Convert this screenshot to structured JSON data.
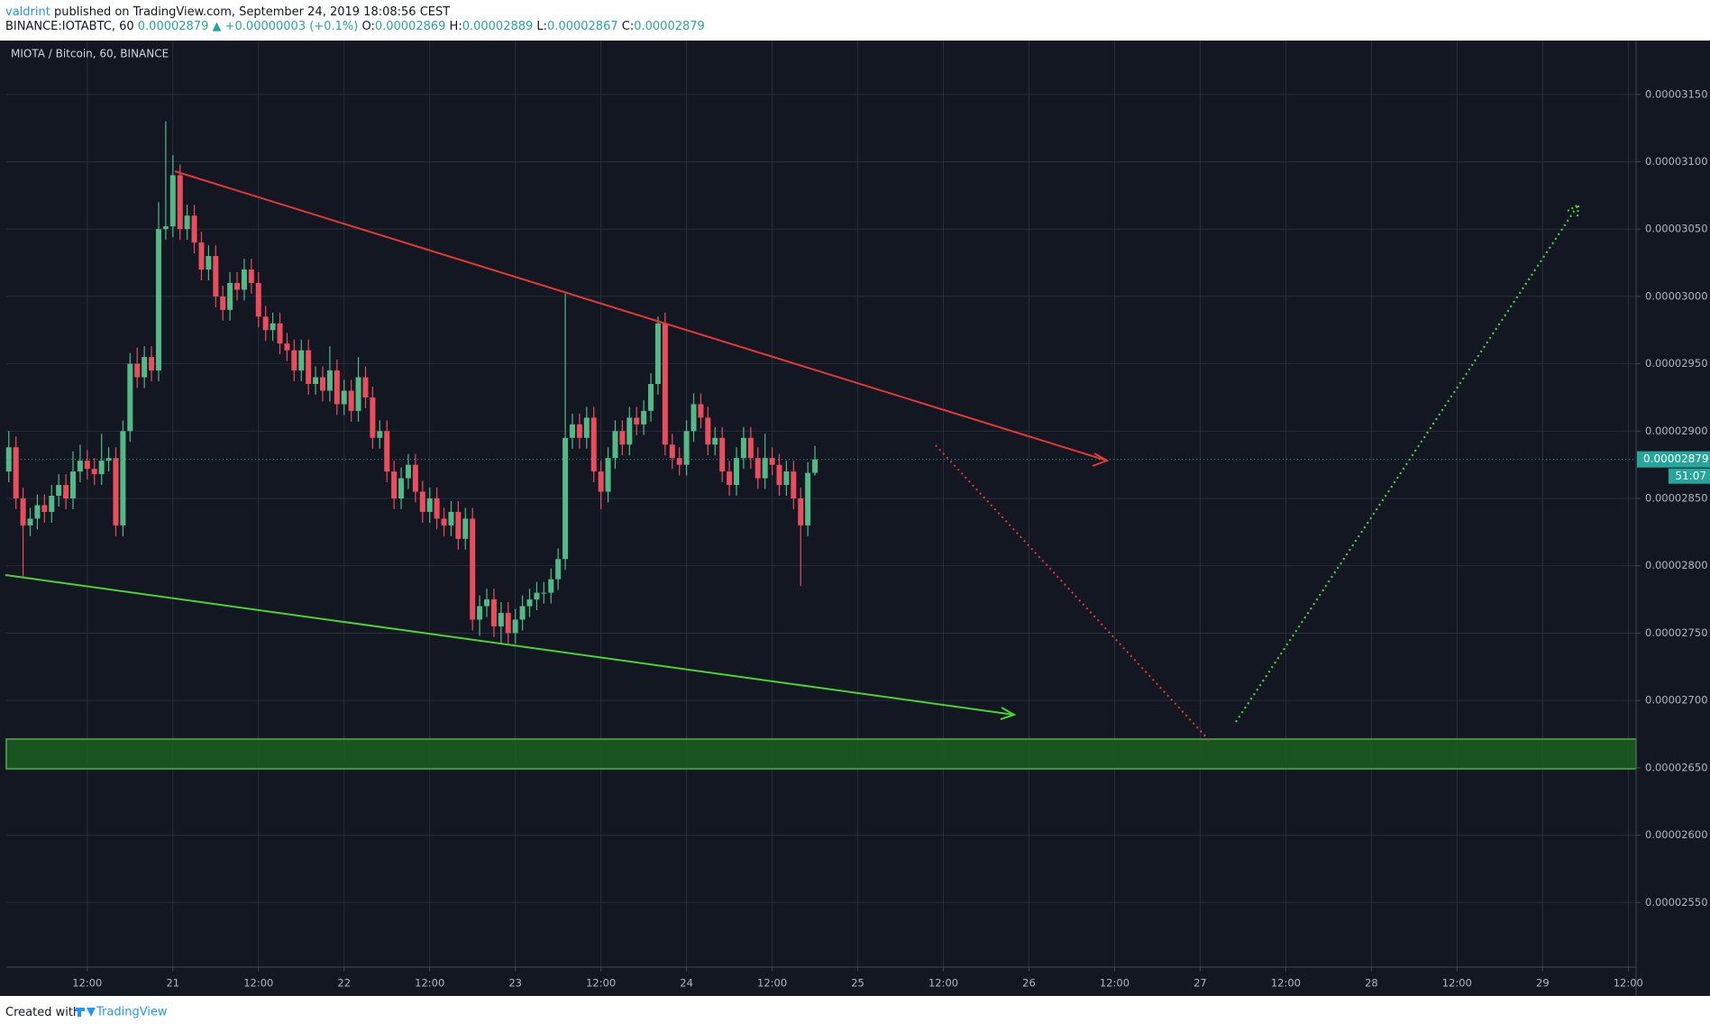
{
  "header": {
    "author": "valdrint",
    "published": "published on TradingView.com, September 24, 2019 18:08:56 CEST",
    "symbol": "BINANCE:IOTABTC, 60",
    "change": "▲ +0.00000003 (+0.1%)",
    "labels": [
      "O:",
      "H:",
      "L:",
      "C:"
    ],
    "legend": "MIOTA / Bitcoin, 60, BINANCE",
    "countdown": "51:07",
    "footer_prefix": "Created with",
    "footer_brand": "TradingView"
  },
  "chart_data": {
    "type": "candlestick",
    "grid": true,
    "up_color": "#53b987",
    "down_color": "#eb4d5c",
    "xlim": [
      0.65,
      229.1
    ],
    "xticks": [
      {
        "value": 12,
        "label": "12:00"
      },
      {
        "value": 24,
        "label": "21"
      },
      {
        "value": 36,
        "label": "12:00"
      },
      {
        "value": 48,
        "label": "22"
      },
      {
        "value": 60,
        "label": "12:00"
      },
      {
        "value": 72,
        "label": "23"
      },
      {
        "value": 84,
        "label": "12:00"
      },
      {
        "value": 96,
        "label": "24"
      },
      {
        "value": 108,
        "label": "12:00"
      },
      {
        "value": 120,
        "label": "25"
      },
      {
        "value": 132,
        "label": "12:00"
      },
      {
        "value": 144,
        "label": "26"
      },
      {
        "value": 156,
        "label": "12:00"
      },
      {
        "value": 168,
        "label": "27"
      },
      {
        "value": 180,
        "label": "12:00"
      },
      {
        "value": 192,
        "label": "28"
      },
      {
        "value": 204,
        "label": "12:00"
      },
      {
        "value": 216,
        "label": "29"
      },
      {
        "value": 228,
        "label": "12:00"
      }
    ],
    "ylim": [
      2.502e-05,
      3.19e-05
    ],
    "yticks": [
      {
        "value": 2.55e-05,
        "label": "0.00002550"
      },
      {
        "value": 2.6e-05,
        "label": "0.00002600"
      },
      {
        "value": 2.65e-05,
        "label": "0.00002650"
      },
      {
        "value": 2.7e-05,
        "label": "0.00002700"
      },
      {
        "value": 2.75e-05,
        "label": "0.00002750"
      },
      {
        "value": 2.8e-05,
        "label": "0.00002800"
      },
      {
        "value": 2.85e-05,
        "label": "0.00002850"
      },
      {
        "value": 2.9e-05,
        "label": "0.00002900"
      },
      {
        "value": 2.95e-05,
        "label": "0.00002950"
      },
      {
        "value": 3e-05,
        "label": "0.00003000"
      },
      {
        "value": 3.05e-05,
        "label": "0.00003050"
      },
      {
        "value": 3.1e-05,
        "label": "0.00003100"
      },
      {
        "value": 3.15e-05,
        "label": "0.00003150"
      }
    ],
    "x": [
      1,
      2,
      3,
      4,
      5,
      6,
      7,
      8,
      9,
      10,
      11,
      12,
      13,
      14,
      15,
      16,
      17,
      18,
      19,
      20,
      21,
      22,
      23,
      24,
      25,
      26,
      27,
      28,
      29,
      30,
      31,
      32,
      33,
      34,
      35,
      36,
      37,
      38,
      39,
      40,
      41,
      42,
      43,
      44,
      45,
      46,
      47,
      48,
      49,
      50,
      51,
      52,
      53,
      54,
      55,
      56,
      57,
      58,
      59,
      60,
      61,
      62,
      63,
      64,
      65,
      66,
      67,
      68,
      69,
      70,
      71,
      72,
      73,
      74,
      75,
      76,
      77,
      78,
      79,
      80,
      81,
      82,
      83,
      84,
      85,
      86,
      87,
      88,
      89,
      90,
      91,
      92,
      93,
      94,
      95,
      96,
      97,
      98,
      99,
      100,
      101,
      102,
      103,
      104,
      105,
      106,
      107,
      108,
      109,
      110,
      111,
      112,
      113,
      114
    ],
    "open": [
      2.87e-05,
      2.888e-05,
      2.85e-05,
      2.83e-05,
      2.835e-05,
      2.845e-05,
      2.84e-05,
      2.852e-05,
      2.86e-05,
      2.85e-05,
      2.87e-05,
      2.878e-05,
      2.872e-05,
      2.868e-05,
      2.878e-05,
      2.88e-05,
      2.83e-05,
      2.9e-05,
      2.95e-05,
      2.94e-05,
      2.955e-05,
      2.945e-05,
      3.05e-05,
      3.052e-05,
      3.09e-05,
      3.05e-05,
      3.06e-05,
      3.04e-05,
      3.02e-05,
      3.03e-05,
      3e-05,
      2.99e-05,
      3.01e-05,
      3.005e-05,
      3.02e-05,
      3.01e-05,
      2.985e-05,
      2.975e-05,
      2.98e-05,
      2.965e-05,
      2.96e-05,
      2.945e-05,
      2.96e-05,
      2.935e-05,
      2.94e-05,
      2.93e-05,
      2.945e-05,
      2.92e-05,
      2.93e-05,
      2.915e-05,
      2.94e-05,
      2.925e-05,
      2.895e-05,
      2.9e-05,
      2.87e-05,
      2.85e-05,
      2.865e-05,
      2.875e-05,
      2.855e-05,
      2.84e-05,
      2.85e-05,
      2.835e-05,
      2.83e-05,
      2.84e-05,
      2.82e-05,
      2.835e-05,
      2.76e-05,
      2.77e-05,
      2.775e-05,
      2.755e-05,
      2.765e-05,
      2.75e-05,
      2.76e-05,
      2.77e-05,
      2.775e-05,
      2.78e-05,
      2.78e-05,
      2.79e-05,
      2.805e-05,
      2.895e-05,
      2.905e-05,
      2.895e-05,
      2.91e-05,
      2.87e-05,
      2.855e-05,
      2.88e-05,
      2.9e-05,
      2.89e-05,
      2.91e-05,
      2.905e-05,
      2.915e-05,
      2.935e-05,
      2.98e-05,
      2.89e-05,
      2.88e-05,
      2.875e-05,
      2.9e-05,
      2.92e-05,
      2.91e-05,
      2.89e-05,
      2.895e-05,
      2.87e-05,
      2.86e-05,
      2.88e-05,
      2.895e-05,
      2.88e-05,
      2.865e-05,
      2.88e-05,
      2.875e-05,
      2.86e-05,
      2.87e-05,
      2.85e-05,
      2.83e-05,
      2.869e-05
    ],
    "high": [
      2.9e-05,
      2.896e-05,
      2.858e-05,
      2.843e-05,
      2.853e-05,
      2.853e-05,
      2.86e-05,
      2.868e-05,
      2.868e-05,
      2.885e-05,
      2.89e-05,
      2.886e-05,
      2.88e-05,
      2.898e-05,
      2.888e-05,
      2.888e-05,
      2.908e-05,
      2.958e-05,
      2.962e-05,
      2.963e-05,
      2.963e-05,
      3.07e-05,
      3.13e-05,
      3.105e-05,
      3.098e-05,
      3.068e-05,
      3.068e-05,
      3.048e-05,
      3.038e-05,
      3.038e-05,
      3.008e-05,
      3.018e-05,
      3.018e-05,
      3.028e-05,
      3.028e-05,
      3.018e-05,
      2.993e-05,
      2.988e-05,
      2.988e-05,
      2.973e-05,
      2.968e-05,
      2.968e-05,
      2.968e-05,
      2.948e-05,
      2.948e-05,
      2.963e-05,
      2.953e-05,
      2.938e-05,
      2.938e-05,
      2.955e-05,
      2.948e-05,
      2.933e-05,
      2.908e-05,
      2.908e-05,
      2.878e-05,
      2.873e-05,
      2.883e-05,
      2.883e-05,
      2.863e-05,
      2.858e-05,
      2.858e-05,
      2.843e-05,
      2.848e-05,
      2.848e-05,
      2.843e-05,
      2.843e-05,
      2.778e-05,
      2.783e-05,
      2.783e-05,
      2.773e-05,
      2.773e-05,
      2.768e-05,
      2.778e-05,
      2.783e-05,
      2.788e-05,
      2.788e-05,
      2.798e-05,
      2.813e-05,
      3.002e-05,
      2.913e-05,
      2.913e-05,
      2.918e-05,
      2.918e-05,
      2.878e-05,
      2.888e-05,
      2.908e-05,
      2.908e-05,
      2.918e-05,
      2.918e-05,
      2.923e-05,
      2.943e-05,
      2.985e-05,
      2.988e-05,
      2.898e-05,
      2.888e-05,
      2.908e-05,
      2.928e-05,
      2.928e-05,
      2.918e-05,
      2.903e-05,
      2.903e-05,
      2.878e-05,
      2.888e-05,
      2.903e-05,
      2.903e-05,
      2.888e-05,
      2.898e-05,
      2.888e-05,
      2.883e-05,
      2.878e-05,
      2.878e-05,
      2.858e-05,
      2.877e-05,
      2.889e-05
    ],
    "low": [
      2.862e-05,
      2.842e-05,
      2.792e-05,
      2.822e-05,
      2.827e-05,
      2.832e-05,
      2.832e-05,
      2.844e-05,
      2.842e-05,
      2.842e-05,
      2.862e-05,
      2.864e-05,
      2.86e-05,
      2.86e-05,
      2.87e-05,
      2.822e-05,
      2.822e-05,
      2.892e-05,
      2.932e-05,
      2.932e-05,
      2.937e-05,
      2.937e-05,
      3.042e-05,
      3.044e-05,
      3.042e-05,
      3.042e-05,
      3.032e-05,
      3.012e-05,
      3.012e-05,
      2.992e-05,
      2.982e-05,
      2.982e-05,
      2.997e-05,
      2.997e-05,
      3.002e-05,
      2.977e-05,
      2.967e-05,
      2.967e-05,
      2.957e-05,
      2.952e-05,
      2.937e-05,
      2.937e-05,
      2.927e-05,
      2.927e-05,
      2.922e-05,
      2.922e-05,
      2.912e-05,
      2.912e-05,
      2.907e-05,
      2.907e-05,
      2.917e-05,
      2.887e-05,
      2.887e-05,
      2.862e-05,
      2.842e-05,
      2.842e-05,
      2.857e-05,
      2.847e-05,
      2.832e-05,
      2.832e-05,
      2.827e-05,
      2.822e-05,
      2.822e-05,
      2.812e-05,
      2.812e-05,
      2.752e-05,
      2.748e-05,
      2.762e-05,
      2.747e-05,
      2.742e-05,
      2.742e-05,
      2.742e-05,
      2.752e-05,
      2.762e-05,
      2.767e-05,
      2.772e-05,
      2.772e-05,
      2.782e-05,
      2.797e-05,
      2.887e-05,
      2.887e-05,
      2.887e-05,
      2.862e-05,
      2.842e-05,
      2.847e-05,
      2.872e-05,
      2.882e-05,
      2.882e-05,
      2.897e-05,
      2.897e-05,
      2.907e-05,
      2.927e-05,
      2.882e-05,
      2.872e-05,
      2.867e-05,
      2.867e-05,
      2.892e-05,
      2.902e-05,
      2.882e-05,
      2.882e-05,
      2.862e-05,
      2.852e-05,
      2.852e-05,
      2.872e-05,
      2.872e-05,
      2.857e-05,
      2.857e-05,
      2.867e-05,
      2.852e-05,
      2.852e-05,
      2.842e-05,
      2.785e-05,
      2.822e-05,
      2.867e-05
    ],
    "close": [
      2.888e-05,
      2.85e-05,
      2.83e-05,
      2.835e-05,
      2.845e-05,
      2.84e-05,
      2.852e-05,
      2.86e-05,
      2.85e-05,
      2.87e-05,
      2.878e-05,
      2.872e-05,
      2.868e-05,
      2.878e-05,
      2.88e-05,
      2.83e-05,
      2.9e-05,
      2.95e-05,
      2.94e-05,
      2.955e-05,
      2.945e-05,
      3.05e-05,
      3.052e-05,
      3.09e-05,
      3.05e-05,
      3.06e-05,
      3.04e-05,
      3.02e-05,
      3.03e-05,
      3e-05,
      2.99e-05,
      3.01e-05,
      3.005e-05,
      3.02e-05,
      3.01e-05,
      2.985e-05,
      2.975e-05,
      2.98e-05,
      2.965e-05,
      2.96e-05,
      2.945e-05,
      2.96e-05,
      2.935e-05,
      2.94e-05,
      2.93e-05,
      2.945e-05,
      2.92e-05,
      2.93e-05,
      2.915e-05,
      2.94e-05,
      2.925e-05,
      2.895e-05,
      2.9e-05,
      2.87e-05,
      2.85e-05,
      2.865e-05,
      2.875e-05,
      2.855e-05,
      2.84e-05,
      2.85e-05,
      2.835e-05,
      2.83e-05,
      2.84e-05,
      2.82e-05,
      2.835e-05,
      2.76e-05,
      2.77e-05,
      2.775e-05,
      2.755e-05,
      2.765e-05,
      2.75e-05,
      2.76e-05,
      2.77e-05,
      2.775e-05,
      2.78e-05,
      2.78e-05,
      2.79e-05,
      2.805e-05,
      2.895e-05,
      2.905e-05,
      2.895e-05,
      2.91e-05,
      2.87e-05,
      2.855e-05,
      2.88e-05,
      2.9e-05,
      2.89e-05,
      2.91e-05,
      2.905e-05,
      2.915e-05,
      2.935e-05,
      2.98e-05,
      2.89e-05,
      2.88e-05,
      2.875e-05,
      2.9e-05,
      2.92e-05,
      2.91e-05,
      2.89e-05,
      2.895e-05,
      2.87e-05,
      2.86e-05,
      2.88e-05,
      2.895e-05,
      2.88e-05,
      2.865e-05,
      2.88e-05,
      2.875e-05,
      2.86e-05,
      2.87e-05,
      2.85e-05,
      2.83e-05,
      2.869e-05,
      2.879e-05
    ]
  }
}
